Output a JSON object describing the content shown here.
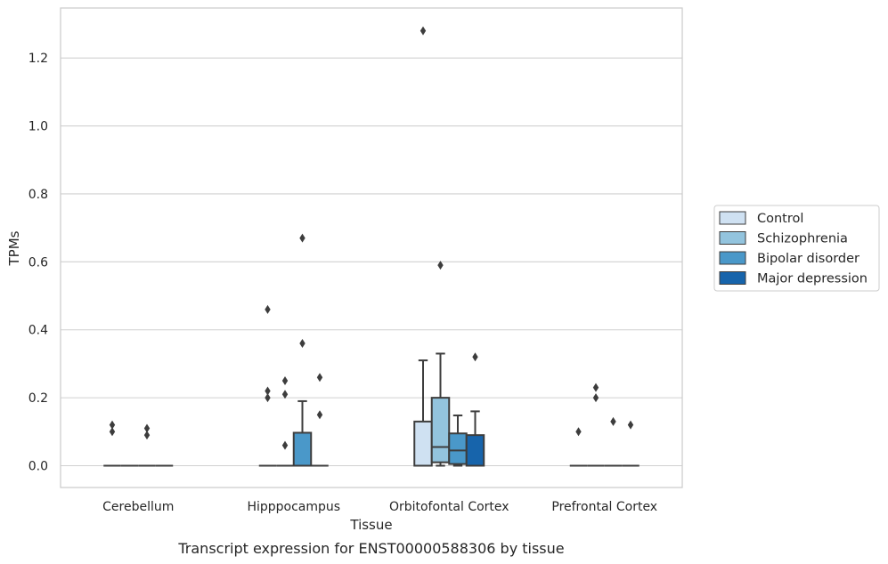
{
  "chart_data": {
    "type": "box",
    "title": "",
    "caption": "Transcript expression for ENST00000588306 by tissue",
    "xlabel": "Tissue",
    "ylabel": "TPMs",
    "ylim": [
      -0.065,
      1.35
    ],
    "yticks": [
      "0.0",
      "0.2",
      "0.4",
      "0.6",
      "0.8",
      "1.0",
      "1.2"
    ],
    "grid": "horizontal",
    "legend_position": "center-right",
    "categories": [
      "Cerebellum",
      "Hipppocampus",
      "Orbitofontal Cortex",
      "Prefrontal Cortex"
    ],
    "series": [
      {
        "name": "Control",
        "color": "#cfe1f2",
        "boxes": [
          {
            "q1": 0,
            "median": 0,
            "q3": 0,
            "whislo": 0,
            "whishi": 0,
            "fliers": [
              0.1,
              0.12
            ]
          },
          {
            "q1": 0,
            "median": 0,
            "q3": 0,
            "whislo": 0,
            "whishi": 0,
            "fliers": [
              0.2,
              0.22,
              0.46
            ]
          },
          {
            "q1": 0,
            "median": 0,
            "q3": 0.13,
            "whislo": 0,
            "whishi": 0.31,
            "fliers": [
              1.28
            ]
          },
          {
            "q1": 0,
            "median": 0,
            "q3": 0,
            "whislo": 0,
            "whishi": 0,
            "fliers": [
              0.1
            ]
          }
        ]
      },
      {
        "name": "Schizophrenia",
        "color": "#93c4de",
        "boxes": [
          {
            "q1": 0,
            "median": 0,
            "q3": 0,
            "whislo": 0,
            "whishi": 0,
            "fliers": []
          },
          {
            "q1": 0,
            "median": 0,
            "q3": 0,
            "whislo": 0,
            "whishi": 0,
            "fliers": [
              0.06,
              0.21,
              0.25
            ]
          },
          {
            "q1": 0.01,
            "median": 0.055,
            "q3": 0.2,
            "whislo": 0,
            "whishi": 0.33,
            "fliers": [
              0.59
            ]
          },
          {
            "q1": 0,
            "median": 0,
            "q3": 0,
            "whislo": 0,
            "whishi": 0,
            "fliers": [
              0.2,
              0.23
            ]
          }
        ]
      },
      {
        "name": "Bipolar disorder",
        "color": "#4a98c9",
        "boxes": [
          {
            "q1": 0,
            "median": 0,
            "q3": 0,
            "whislo": 0,
            "whishi": 0,
            "fliers": [
              0.09,
              0.11
            ]
          },
          {
            "q1": 0,
            "median": 0,
            "q3": 0.097,
            "whislo": 0,
            "whishi": 0.19,
            "fliers": [
              0.36,
              0.67
            ]
          },
          {
            "q1": 0.005,
            "median": 0.045,
            "q3": 0.095,
            "whislo": 0,
            "whishi": 0.148,
            "fliers": []
          },
          {
            "q1": 0,
            "median": 0,
            "q3": 0,
            "whislo": 0,
            "whishi": 0,
            "fliers": [
              0.13
            ]
          }
        ]
      },
      {
        "name": "Major depression",
        "color": "#1764ab",
        "boxes": [
          {
            "q1": 0,
            "median": 0,
            "q3": 0,
            "whislo": 0,
            "whishi": 0,
            "fliers": []
          },
          {
            "q1": 0,
            "median": 0,
            "q3": 0,
            "whislo": 0,
            "whishi": 0,
            "fliers": [
              0.15,
              0.26
            ]
          },
          {
            "q1": 0,
            "median": 0,
            "q3": 0.09,
            "whislo": 0,
            "whishi": 0.16,
            "fliers": [
              0.32
            ]
          },
          {
            "q1": 0,
            "median": 0,
            "q3": 0,
            "whislo": 0,
            "whishi": 0,
            "fliers": [
              0.12
            ]
          }
        ]
      }
    ]
  }
}
